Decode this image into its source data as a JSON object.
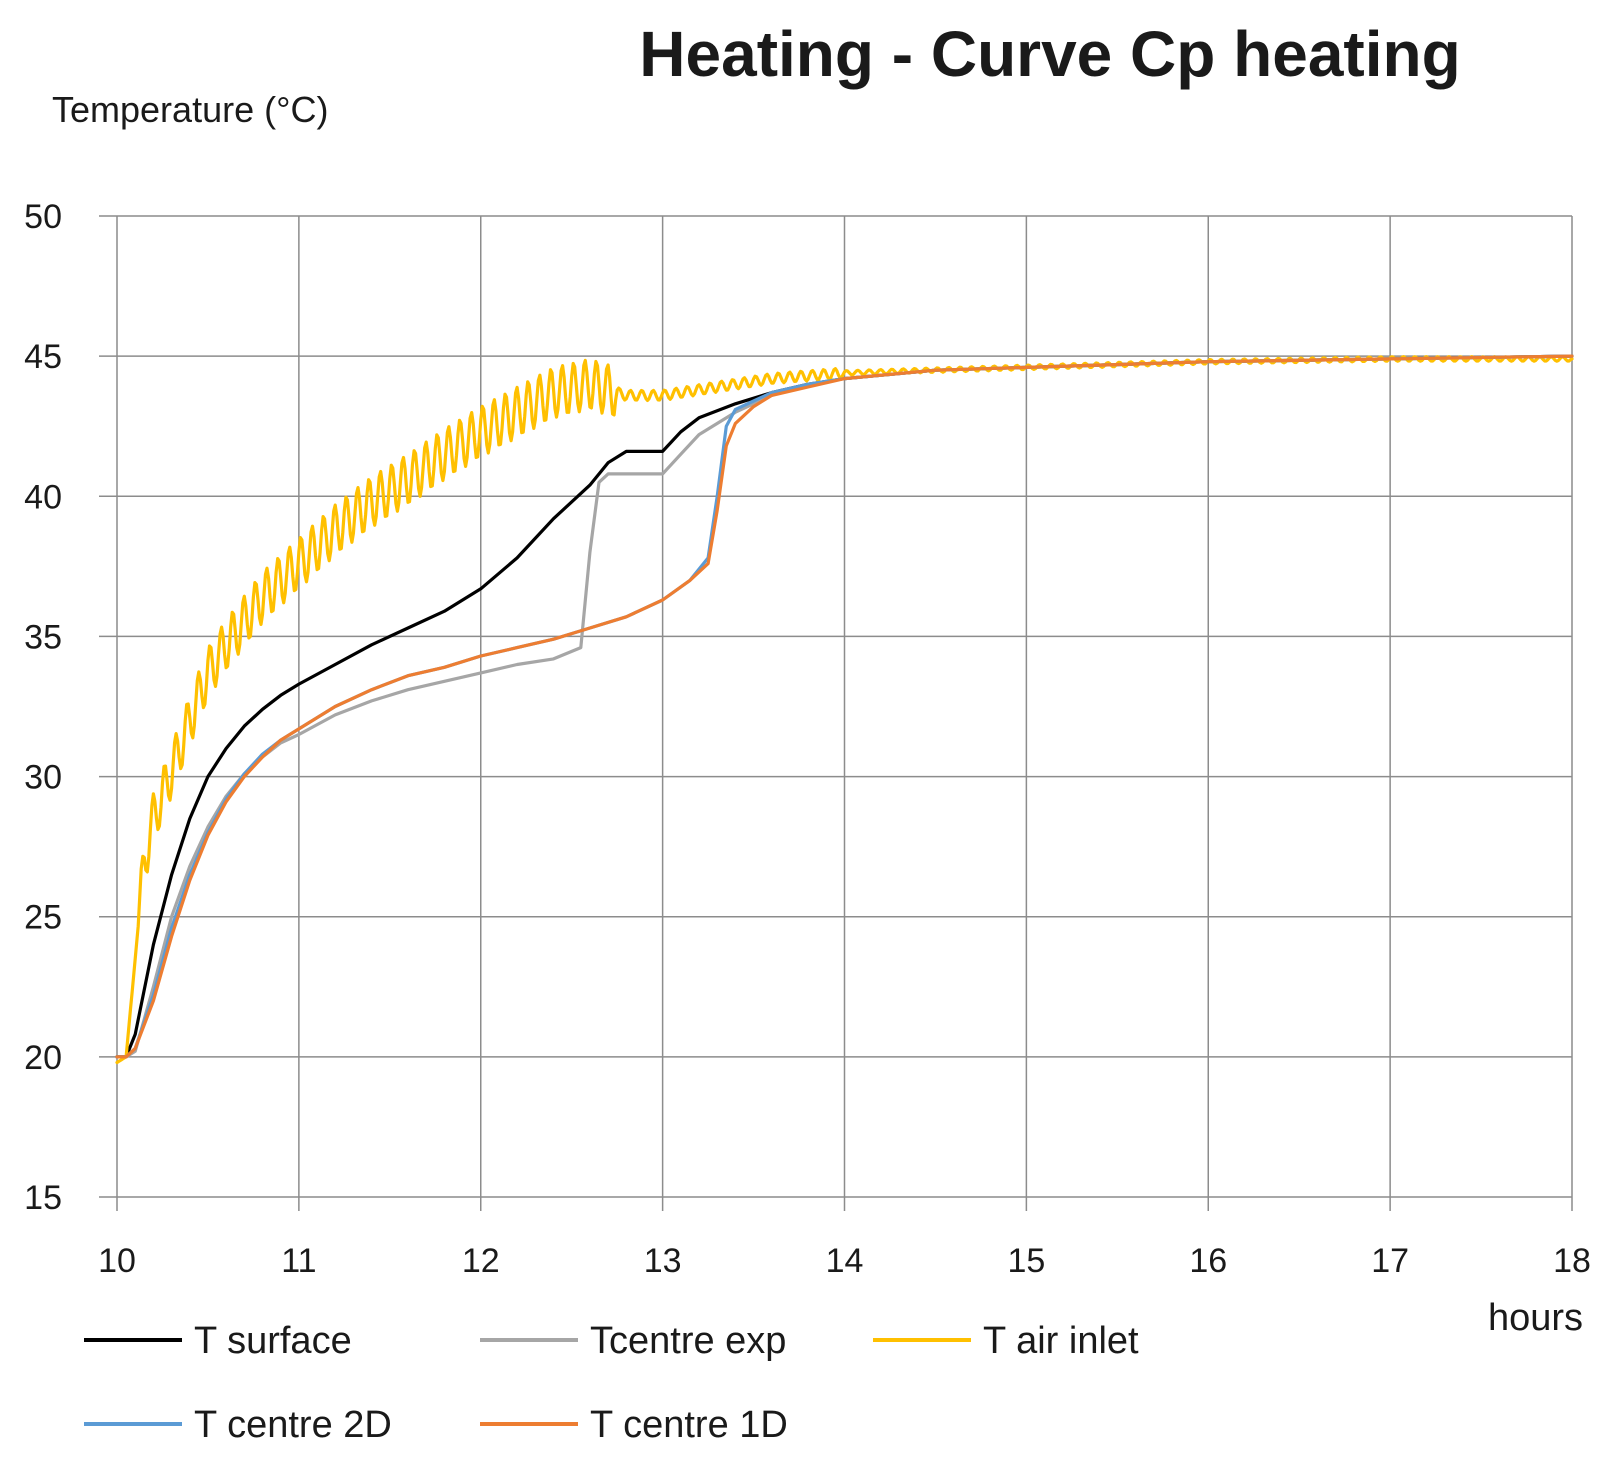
{
  "chart_data": {
    "type": "line",
    "title": "Heating - Curve Cp heating",
    "ylabel": "Temperature  (°C)",
    "xlabel": "hours",
    "xlim": [
      10,
      18
    ],
    "ylim": [
      15,
      50
    ],
    "xticks": [
      10,
      11,
      12,
      13,
      14,
      15,
      16,
      17,
      18
    ],
    "yticks": [
      15,
      20,
      25,
      30,
      35,
      40,
      45,
      50
    ],
    "grid": true,
    "legend_position": "bottom-left",
    "series": [
      {
        "name": "T surface",
        "color": "#000000",
        "x": [
          10.0,
          10.05,
          10.1,
          10.2,
          10.3,
          10.4,
          10.5,
          10.6,
          10.7,
          10.8,
          10.9,
          11.0,
          11.2,
          11.4,
          11.6,
          11.8,
          12.0,
          12.2,
          12.4,
          12.6,
          12.7,
          12.8,
          12.9,
          13.0,
          13.1,
          13.2,
          13.4,
          13.6,
          13.8,
          14.0,
          14.5,
          15.0,
          16.0,
          17.0,
          18.0
        ],
        "y": [
          20.0,
          20.0,
          20.8,
          24.0,
          26.5,
          28.5,
          30.0,
          31.0,
          31.8,
          32.4,
          32.9,
          33.3,
          34.0,
          34.7,
          35.3,
          35.9,
          36.7,
          37.8,
          39.2,
          40.4,
          41.2,
          41.6,
          41.6,
          41.6,
          42.3,
          42.8,
          43.3,
          43.7,
          44.0,
          44.2,
          44.5,
          44.6,
          44.8,
          44.9,
          45.0
        ]
      },
      {
        "name": "Tcentre exp",
        "color": "#a6a6a6",
        "x": [
          10.0,
          10.05,
          10.1,
          10.2,
          10.3,
          10.4,
          10.5,
          10.6,
          10.7,
          10.8,
          10.9,
          11.0,
          11.2,
          11.4,
          11.6,
          11.8,
          12.0,
          12.2,
          12.4,
          12.55,
          12.6,
          12.65,
          12.7,
          12.8,
          12.9,
          13.0,
          13.1,
          13.2,
          13.4,
          13.6,
          13.8,
          14.0,
          14.5,
          15.0,
          16.0,
          17.0,
          18.0
        ],
        "y": [
          20.0,
          20.0,
          20.2,
          22.5,
          25.0,
          26.8,
          28.2,
          29.3,
          30.1,
          30.7,
          31.2,
          31.5,
          32.2,
          32.7,
          33.1,
          33.4,
          33.7,
          34.0,
          34.2,
          34.6,
          38.0,
          40.5,
          40.8,
          40.8,
          40.8,
          40.8,
          41.5,
          42.2,
          43.0,
          43.6,
          44.0,
          44.2,
          44.5,
          44.6,
          44.8,
          44.9,
          45.0
        ]
      },
      {
        "name": "T air inlet",
        "color": "#ffc000",
        "x": [
          10.0,
          10.05,
          10.1,
          10.15,
          10.2,
          10.3,
          10.4,
          10.5,
          10.6,
          10.8,
          11.0,
          11.2,
          11.4,
          11.6,
          11.8,
          12.0,
          12.2,
          12.4,
          12.6,
          12.7,
          12.8,
          13.0,
          13.2,
          13.4,
          13.6,
          13.8,
          14.0,
          14.5,
          15.0,
          16.0,
          17.0,
          18.0
        ],
        "y": [
          19.8,
          20.0,
          23.5,
          27.0,
          28.5,
          30.2,
          32.0,
          33.7,
          34.7,
          36.4,
          37.6,
          38.8,
          39.8,
          40.6,
          41.5,
          42.3,
          43.0,
          43.7,
          44.0,
          43.8,
          43.6,
          43.6,
          43.8,
          44.0,
          44.2,
          44.3,
          44.4,
          44.5,
          44.6,
          44.8,
          44.9,
          44.9
        ]
      },
      {
        "name": "T centre 2D",
        "color": "#5b9bd5",
        "x": [
          10.0,
          10.05,
          10.1,
          10.2,
          10.3,
          10.4,
          10.5,
          10.6,
          10.7,
          10.8,
          10.9,
          11.0,
          11.2,
          11.4,
          11.6,
          11.8,
          12.0,
          12.2,
          12.4,
          12.6,
          12.8,
          13.0,
          13.15,
          13.25,
          13.3,
          13.35,
          13.4,
          13.5,
          13.6,
          13.8,
          14.0,
          14.5,
          15.0,
          16.0,
          17.0,
          18.0
        ],
        "y": [
          20.0,
          20.0,
          20.3,
          22.2,
          24.6,
          26.5,
          28.0,
          29.2,
          30.1,
          30.8,
          31.3,
          31.7,
          32.5,
          33.1,
          33.6,
          33.9,
          34.3,
          34.6,
          34.9,
          35.3,
          35.7,
          36.3,
          37.0,
          37.8,
          40.0,
          42.5,
          43.1,
          43.4,
          43.7,
          44.0,
          44.2,
          44.5,
          44.6,
          44.8,
          44.9,
          45.0
        ]
      },
      {
        "name": "T centre 1D",
        "color": "#ed7d31",
        "x": [
          10.0,
          10.05,
          10.1,
          10.2,
          10.3,
          10.4,
          10.5,
          10.6,
          10.7,
          10.8,
          10.9,
          11.0,
          11.2,
          11.4,
          11.6,
          11.8,
          12.0,
          12.2,
          12.4,
          12.6,
          12.8,
          13.0,
          13.15,
          13.25,
          13.3,
          13.35,
          13.4,
          13.5,
          13.6,
          13.8,
          14.0,
          14.5,
          15.0,
          16.0,
          17.0,
          18.0
        ],
        "y": [
          20.0,
          20.0,
          20.3,
          22.0,
          24.3,
          26.3,
          27.9,
          29.1,
          30.0,
          30.7,
          31.3,
          31.7,
          32.5,
          33.1,
          33.6,
          33.9,
          34.3,
          34.6,
          34.9,
          35.3,
          35.7,
          36.3,
          37.0,
          37.6,
          39.5,
          41.8,
          42.6,
          43.2,
          43.6,
          43.9,
          44.2,
          44.5,
          44.6,
          44.8,
          44.9,
          45.0
        ]
      }
    ]
  }
}
